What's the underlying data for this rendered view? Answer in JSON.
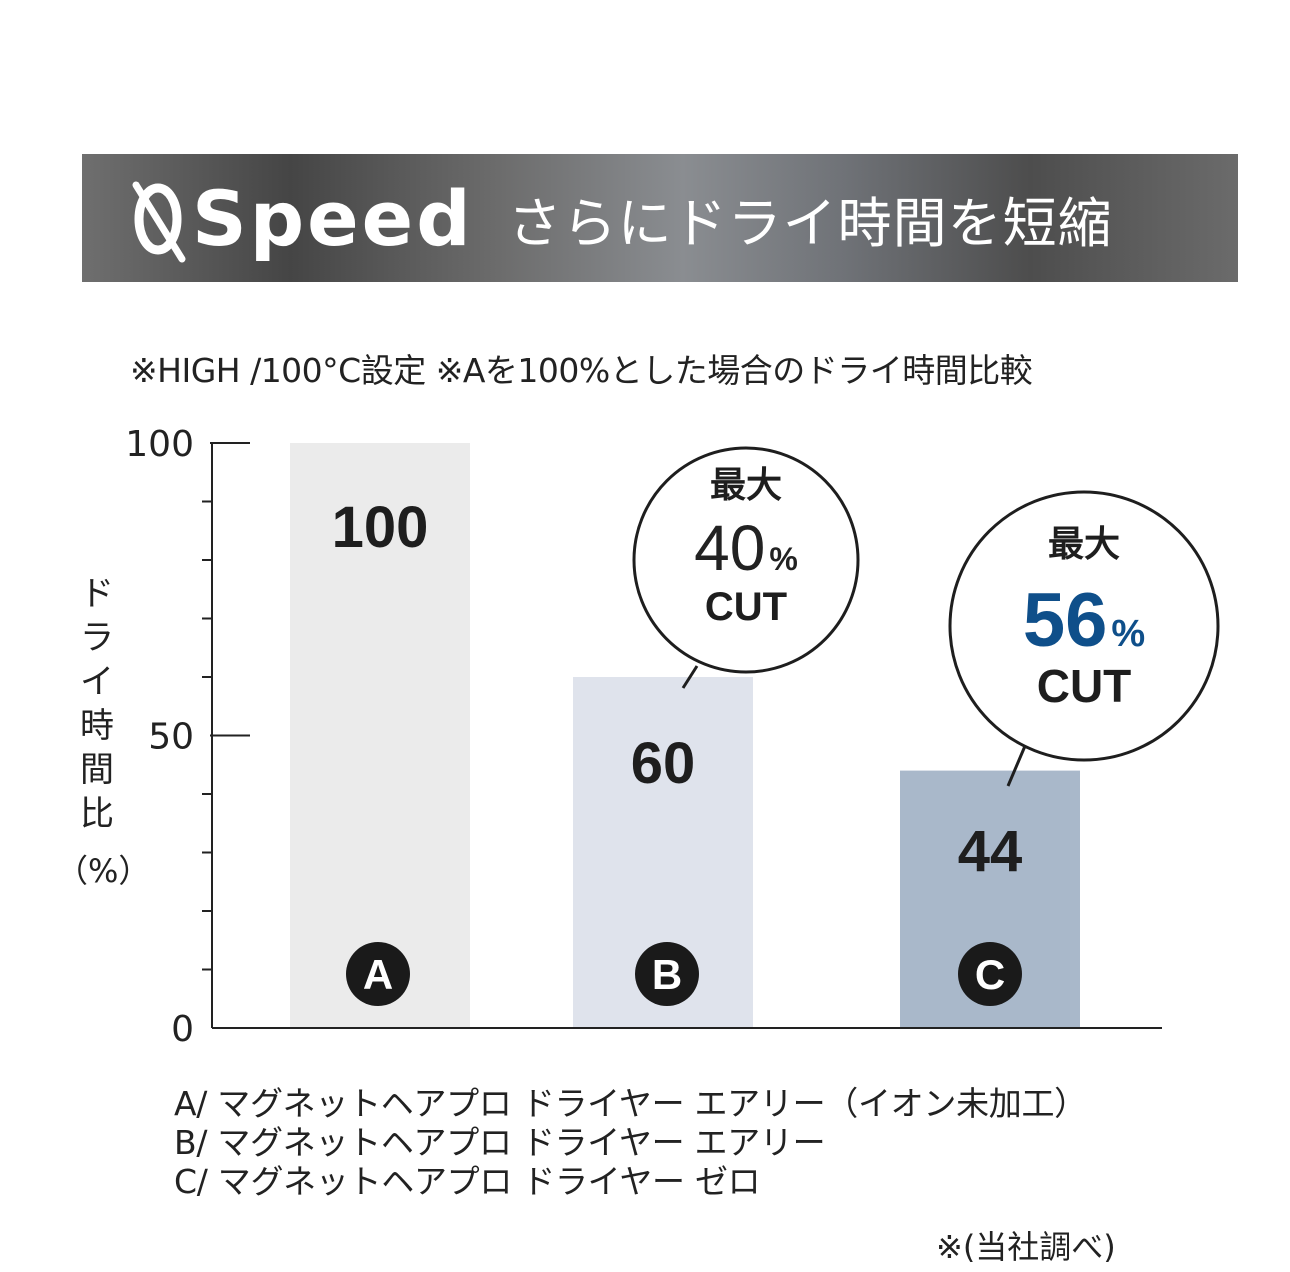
{
  "banner": {
    "brand": "Speed",
    "logo_icon": "q-zero-logo-icon",
    "tagline": "さらにドライ時間を短縮"
  },
  "notes": {
    "top": "※HIGH /100°C設定 ※Aを100%とした場合のドライ時間比較",
    "footnote": "※(当社調べ)"
  },
  "legend": [
    "A/ マグネットヘアプロ ドライヤー エアリー（イオン未加工）",
    "B/ マグネットヘアプロ ドライヤー エアリー",
    "C/ マグネットヘアプロ ドライヤー ゼロ"
  ],
  "chart_data": {
    "type": "bar",
    "categories": [
      "A",
      "B",
      "C"
    ],
    "values": [
      100,
      60,
      44
    ],
    "ylabel": "ドライ時間比",
    "ylabel_unit": "（%）",
    "ylim": [
      0,
      100
    ],
    "yticks": [
      0,
      50,
      100
    ],
    "minor_tick_step": 10,
    "bar_colors": [
      "#ebebeb",
      "#dfe3ec",
      "#a9b8ca"
    ],
    "callouts": [
      {
        "bar": "B",
        "top": "最大",
        "value": "40",
        "unit": "%",
        "bottom": "CUT",
        "value_color": "#222222"
      },
      {
        "bar": "C",
        "top": "最大",
        "value": "56",
        "unit": "%",
        "bottom": "CUT",
        "value_color": "#0f4f8a"
      }
    ]
  }
}
